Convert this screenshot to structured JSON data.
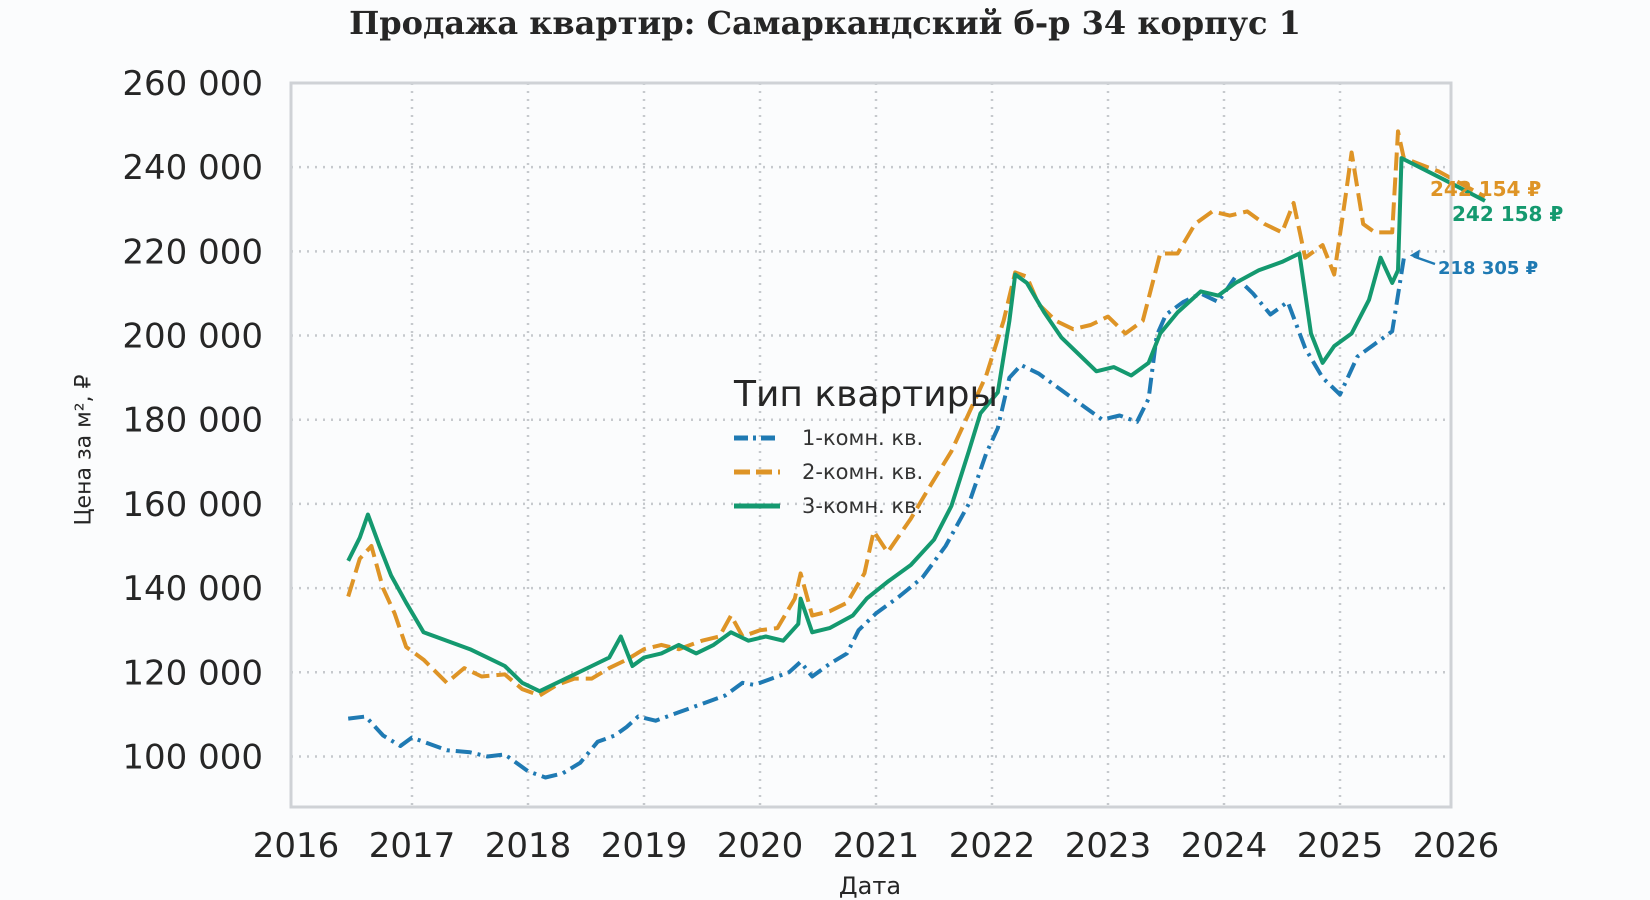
{
  "chart_data": {
    "type": "line",
    "title": "Продажа квартир: Самаркандский б-р 34 корпус 1",
    "xlabel": "Дата",
    "ylabel": "Цена за м², ₽",
    "xlim": [
      2016,
      2026
    ],
    "ylim": [
      88000,
      260000
    ],
    "x_ticks": [
      "2016",
      "2017",
      "2018",
      "2019",
      "2020",
      "2021",
      "2022",
      "2023",
      "2024",
      "2025",
      "2026"
    ],
    "y_ticks": [
      "100 000",
      "120 000",
      "140 000",
      "160 000",
      "180 000",
      "200 000",
      "220 000",
      "240 000",
      "260 000"
    ],
    "y_tick_values": [
      100000,
      120000,
      140000,
      160000,
      180000,
      200000,
      220000,
      240000,
      260000
    ],
    "grid": true,
    "legend": {
      "title": "Тип квартиры",
      "placement": "center"
    },
    "series": [
      {
        "name": "1-комн. кв.",
        "color": "#1f7ab3",
        "style": "dashdot",
        "points": [
          [
            2016.45,
            109000
          ],
          [
            2016.6,
            109500
          ],
          [
            2016.75,
            105000
          ],
          [
            2016.9,
            102500
          ],
          [
            2017.0,
            104500
          ],
          [
            2017.15,
            103000
          ],
          [
            2017.3,
            101500
          ],
          [
            2017.5,
            101000
          ],
          [
            2017.65,
            100000
          ],
          [
            2017.8,
            100500
          ],
          [
            2018.0,
            96500
          ],
          [
            2018.15,
            95000
          ],
          [
            2018.3,
            96000
          ],
          [
            2018.45,
            98500
          ],
          [
            2018.6,
            103500
          ],
          [
            2018.75,
            105000
          ],
          [
            2018.85,
            107000
          ],
          [
            2018.95,
            109500
          ],
          [
            2019.1,
            108500
          ],
          [
            2019.3,
            110500
          ],
          [
            2019.5,
            112500
          ],
          [
            2019.7,
            114500
          ],
          [
            2019.85,
            117500
          ],
          [
            2019.95,
            117000
          ],
          [
            2020.1,
            118500
          ],
          [
            2020.25,
            120000
          ],
          [
            2020.35,
            122500
          ],
          [
            2020.45,
            119000
          ],
          [
            2020.6,
            122000
          ],
          [
            2020.75,
            124500
          ],
          [
            2020.85,
            130000
          ],
          [
            2021.0,
            134000
          ],
          [
            2021.2,
            138000
          ],
          [
            2021.4,
            142500
          ],
          [
            2021.6,
            150000
          ],
          [
            2021.8,
            160000
          ],
          [
            2021.95,
            172000
          ],
          [
            2022.05,
            178000
          ],
          [
            2022.15,
            190000
          ],
          [
            2022.25,
            193000
          ],
          [
            2022.4,
            191000
          ],
          [
            2022.6,
            187000
          ],
          [
            2022.8,
            183000
          ],
          [
            2022.95,
            180000
          ],
          [
            2023.1,
            181000
          ],
          [
            2023.25,
            179500
          ],
          [
            2023.35,
            185000
          ],
          [
            2023.42,
            200000
          ],
          [
            2023.5,
            205000
          ],
          [
            2023.65,
            208000
          ],
          [
            2023.8,
            210000
          ],
          [
            2023.95,
            208000
          ],
          [
            2024.1,
            214000
          ],
          [
            2024.25,
            210000
          ],
          [
            2024.4,
            205000
          ],
          [
            2024.55,
            208000
          ],
          [
            2024.7,
            197000
          ],
          [
            2024.85,
            190000
          ],
          [
            2025.0,
            186000
          ],
          [
            2025.15,
            195000
          ],
          [
            2025.3,
            198000
          ],
          [
            2025.45,
            201000
          ],
          [
            2025.55,
            218305
          ]
        ]
      },
      {
        "name": "2-комн. кв.",
        "color": "#de9426",
        "style": "dashed",
        "points": [
          [
            2016.45,
            138000
          ],
          [
            2016.55,
            147000
          ],
          [
            2016.65,
            150000
          ],
          [
            2016.75,
            140000
          ],
          [
            2016.85,
            134000
          ],
          [
            2016.95,
            126000
          ],
          [
            2017.1,
            123000
          ],
          [
            2017.3,
            117500
          ],
          [
            2017.45,
            121000
          ],
          [
            2017.6,
            119000
          ],
          [
            2017.8,
            119500
          ],
          [
            2017.95,
            116000
          ],
          [
            2018.1,
            114500
          ],
          [
            2018.25,
            117000
          ],
          [
            2018.4,
            118500
          ],
          [
            2018.55,
            118500
          ],
          [
            2018.7,
            121000
          ],
          [
            2018.85,
            123000
          ],
          [
            2019.0,
            125500
          ],
          [
            2019.15,
            126500
          ],
          [
            2019.3,
            125500
          ],
          [
            2019.5,
            127500
          ],
          [
            2019.65,
            128500
          ],
          [
            2019.75,
            133500
          ],
          [
            2019.85,
            128500
          ],
          [
            2020.0,
            130000
          ],
          [
            2020.15,
            130500
          ],
          [
            2020.3,
            137500
          ],
          [
            2020.35,
            143500
          ],
          [
            2020.45,
            133500
          ],
          [
            2020.6,
            134500
          ],
          [
            2020.75,
            136500
          ],
          [
            2020.9,
            143500
          ],
          [
            2020.98,
            153500
          ],
          [
            2021.1,
            148500
          ],
          [
            2021.3,
            156500
          ],
          [
            2021.45,
            163500
          ],
          [
            2021.65,
            172500
          ],
          [
            2021.8,
            181500
          ],
          [
            2021.95,
            190500
          ],
          [
            2022.1,
            203500
          ],
          [
            2022.2,
            215000
          ],
          [
            2022.3,
            214000
          ],
          [
            2022.4,
            207500
          ],
          [
            2022.55,
            203500
          ],
          [
            2022.7,
            201500
          ],
          [
            2022.85,
            202500
          ],
          [
            2023.0,
            204500
          ],
          [
            2023.15,
            200500
          ],
          [
            2023.3,
            203500
          ],
          [
            2023.45,
            219500
          ],
          [
            2023.6,
            219500
          ],
          [
            2023.75,
            226500
          ],
          [
            2023.9,
            229500
          ],
          [
            2024.05,
            228500
          ],
          [
            2024.2,
            229500
          ],
          [
            2024.35,
            226500
          ],
          [
            2024.5,
            224500
          ],
          [
            2024.6,
            231500
          ],
          [
            2024.7,
            218500
          ],
          [
            2024.85,
            221500
          ],
          [
            2024.95,
            214500
          ],
          [
            2025.05,
            233500
          ],
          [
            2025.1,
            243500
          ],
          [
            2025.2,
            226500
          ],
          [
            2025.3,
            224500
          ],
          [
            2025.45,
            224500
          ],
          [
            2025.5,
            248500
          ],
          [
            2025.55,
            242154
          ],
          [
            2025.85,
            239000
          ],
          [
            2026.25,
            233000
          ]
        ]
      },
      {
        "name": "3-комн. кв.",
        "color": "#14996f",
        "style": "solid",
        "points": [
          [
            2016.45,
            146500
          ],
          [
            2016.55,
            152000
          ],
          [
            2016.62,
            157500
          ],
          [
            2016.72,
            150000
          ],
          [
            2016.82,
            143000
          ],
          [
            2016.95,
            136500
          ],
          [
            2017.1,
            129500
          ],
          [
            2017.3,
            127500
          ],
          [
            2017.5,
            125500
          ],
          [
            2017.65,
            123500
          ],
          [
            2017.8,
            121500
          ],
          [
            2017.95,
            117500
          ],
          [
            2018.1,
            115500
          ],
          [
            2018.25,
            117500
          ],
          [
            2018.4,
            119500
          ],
          [
            2018.55,
            121500
          ],
          [
            2018.7,
            123500
          ],
          [
            2018.8,
            128500
          ],
          [
            2018.9,
            121500
          ],
          [
            2019.0,
            123500
          ],
          [
            2019.15,
            124500
          ],
          [
            2019.3,
            126500
          ],
          [
            2019.45,
            124500
          ],
          [
            2019.6,
            126500
          ],
          [
            2019.75,
            129500
          ],
          [
            2019.9,
            127500
          ],
          [
            2020.05,
            128500
          ],
          [
            2020.2,
            127500
          ],
          [
            2020.33,
            131500
          ],
          [
            2020.35,
            137500
          ],
          [
            2020.45,
            129500
          ],
          [
            2020.6,
            130500
          ],
          [
            2020.8,
            133500
          ],
          [
            2020.92,
            137500
          ],
          [
            2021.1,
            141500
          ],
          [
            2021.3,
            145500
          ],
          [
            2021.5,
            151500
          ],
          [
            2021.65,
            159500
          ],
          [
            2021.8,
            172500
          ],
          [
            2021.9,
            181500
          ],
          [
            2022.05,
            186500
          ],
          [
            2022.15,
            203500
          ],
          [
            2022.2,
            214500
          ],
          [
            2022.3,
            212500
          ],
          [
            2022.45,
            205500
          ],
          [
            2022.6,
            199500
          ],
          [
            2022.75,
            195500
          ],
          [
            2022.9,
            191500
          ],
          [
            2023.05,
            192500
          ],
          [
            2023.2,
            190500
          ],
          [
            2023.35,
            193500
          ],
          [
            2023.45,
            200500
          ],
          [
            2023.6,
            205500
          ],
          [
            2023.8,
            210500
          ],
          [
            2023.95,
            209500
          ],
          [
            2024.1,
            212500
          ],
          [
            2024.3,
            215500
          ],
          [
            2024.5,
            217500
          ],
          [
            2024.65,
            219500
          ],
          [
            2024.75,
            200500
          ],
          [
            2024.85,
            193500
          ],
          [
            2024.95,
            197500
          ],
          [
            2025.1,
            200500
          ],
          [
            2025.25,
            208500
          ],
          [
            2025.35,
            218500
          ],
          [
            2025.45,
            212500
          ],
          [
            2025.5,
            215500
          ],
          [
            2025.53,
            242158
          ],
          [
            2025.9,
            237000
          ],
          [
            2026.25,
            232000
          ]
        ]
      }
    ],
    "annotations": [
      {
        "text": "242 154 ₽",
        "series": "2-комн. кв.",
        "x": 2025.55,
        "y": 242154
      },
      {
        "text": "242 158 ₽",
        "series": "3-комн. кв.",
        "x": 2025.53,
        "y": 242158
      },
      {
        "text": "218 305 ₽",
        "series": "1-комн. кв.",
        "x": 2025.55,
        "y": 218305
      }
    ]
  }
}
